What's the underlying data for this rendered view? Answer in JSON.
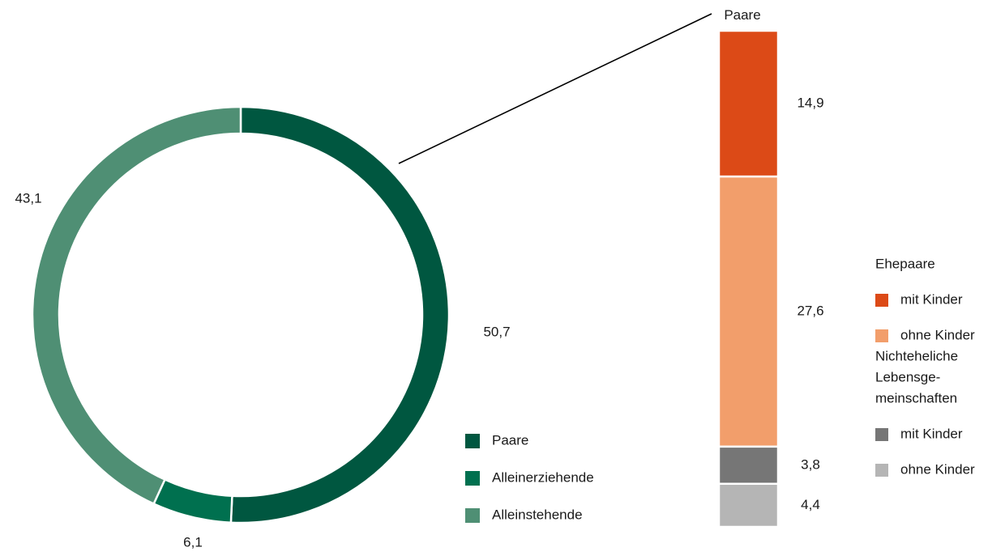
{
  "chart_data": [
    {
      "type": "pie",
      "variant": "donut",
      "slices": [
        {
          "name": "Paare",
          "value": 50.7,
          "label": "50,7",
          "color": "#005740"
        },
        {
          "name": "Alleinerziehende",
          "value": 6.1,
          "label": "6,1",
          "color": "#00704f"
        },
        {
          "name": "Alleinstehende",
          "value": 43.1,
          "label": "43,1",
          "color": "#4f8f74"
        }
      ],
      "legend": {
        "placement": "bottom-right",
        "entries": [
          "Paare",
          "Alleinerziehende",
          "Alleinstehende"
        ]
      }
    },
    {
      "type": "bar",
      "stacked": true,
      "title": "Paare",
      "segments": [
        {
          "group": "Ehepaare",
          "name": "mit Kinder",
          "value": 14.9,
          "label": "14,9",
          "color": "#dc4a17"
        },
        {
          "group": "Ehepaare",
          "name": "ohne Kinder",
          "value": 27.6,
          "label": "27,6",
          "color": "#f29e6b"
        },
        {
          "group": "Nichteheliche Lebensgemeinschaften",
          "name": "mit Kinder",
          "value": 3.8,
          "label": "3,8",
          "color": "#767676"
        },
        {
          "group": "Nichteheliche Lebensgemeinschaften",
          "name": "ohne Kinder",
          "value": 4.4,
          "label": "4,4",
          "color": "#b5b5b5"
        }
      ],
      "legend": {
        "placement": "right",
        "groups": [
          {
            "title_lines": [
              "Ehepaare"
            ],
            "entries": [
              {
                "name": "mit Kinder",
                "color": "#dc4a17"
              },
              {
                "name": "ohne Kinder",
                "color": "#f29e6b"
              }
            ]
          },
          {
            "title_lines": [
              "Nichteheliche",
              "Lebensge-",
              "meinschaften"
            ],
            "entries": [
              {
                "name": "mit Kinder",
                "color": "#767676"
              },
              {
                "name": "ohne Kinder",
                "color": "#b5b5b5"
              }
            ]
          }
        ]
      }
    }
  ]
}
